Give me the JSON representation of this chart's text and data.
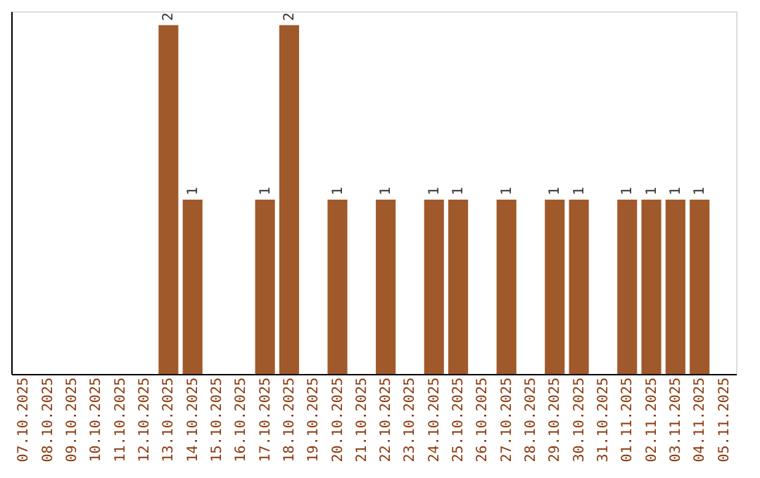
{
  "chart_data": {
    "type": "bar",
    "categories": [
      "07.10.2025",
      "08.10.2025",
      "09.10.2025",
      "10.10.2025",
      "11.10.2025",
      "12.10.2025",
      "13.10.2025",
      "14.10.2025",
      "15.10.2025",
      "16.10.2025",
      "17.10.2025",
      "18.10.2025",
      "19.10.2025",
      "20.10.2025",
      "21.10.2025",
      "22.10.2025",
      "23.10.2025",
      "24.10.2025",
      "25.10.2025",
      "26.10.2025",
      "27.10.2025",
      "28.10.2025",
      "29.10.2025",
      "30.10.2025",
      "31.10.2025",
      "01.11.2025",
      "02.11.2025",
      "03.11.2025",
      "04.11.2025",
      "05.11.2025"
    ],
    "values": [
      0,
      0,
      0,
      0,
      0,
      0,
      2,
      1,
      0,
      0,
      1,
      2,
      0,
      1,
      0,
      1,
      0,
      1,
      1,
      0,
      1,
      0,
      1,
      1,
      0,
      1,
      1,
      1,
      1,
      0
    ],
    "value_labels": [
      null,
      null,
      null,
      null,
      null,
      null,
      "2",
      "1",
      null,
      null,
      "1",
      "2",
      null,
      "1",
      null,
      "1",
      null,
      "1",
      "1",
      null,
      "1",
      null,
      "1",
      "1",
      null,
      "1",
      "1",
      "1",
      "1",
      null
    ],
    "color": "#a0592a",
    "ylim": [
      0,
      2.08
    ],
    "tick_labels": "x",
    "grid": false
  }
}
